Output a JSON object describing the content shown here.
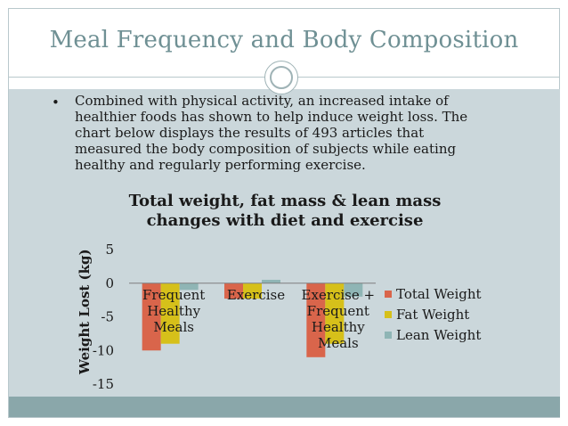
{
  "slide": {
    "title": "Meal Frequency and Body Composition",
    "bullet": "•",
    "text": "Combined with physical activity, an increased intake of healthier foods has shown to help induce weight loss.  The chart below displays the results of 493 articles that measured the body composition of subjects while eating healthy and regularly performing exercise."
  },
  "chart_data": {
    "type": "bar",
    "title": "Total weight, fat mass & lean mass changes with diet and exercise",
    "xlabel": "",
    "ylabel": "Weight Lost (kg)",
    "ylim": [
      -15,
      5
    ],
    "yticks": [
      "5",
      "0",
      "-5",
      "-10",
      "-15"
    ],
    "yticks_values": [
      5,
      0,
      -5,
      -10,
      -15
    ],
    "categories": [
      "Frequent Healthy Meals",
      "Exercise",
      "Exercise + Frequent Healthy Meals"
    ],
    "category_lines": [
      [
        "Frequent",
        "Healthy",
        "Meals"
      ],
      [
        "Exercise"
      ],
      [
        "Exercise +",
        "Frequent",
        "Healthy",
        "Meals"
      ]
    ],
    "series": [
      {
        "name": "Total Weight",
        "color": "#d9654b",
        "values": [
          -10.0,
          -2.3,
          -11.0
        ]
      },
      {
        "name": "Fat Weight",
        "color": "#d6c01a",
        "values": [
          -9.0,
          -2.3,
          -9.0
        ]
      },
      {
        "name": "Lean Weight",
        "color": "#8fb5b5",
        "values": [
          -1.0,
          0.5,
          -2.0
        ]
      }
    ],
    "grid": false,
    "legend_position": "right"
  }
}
